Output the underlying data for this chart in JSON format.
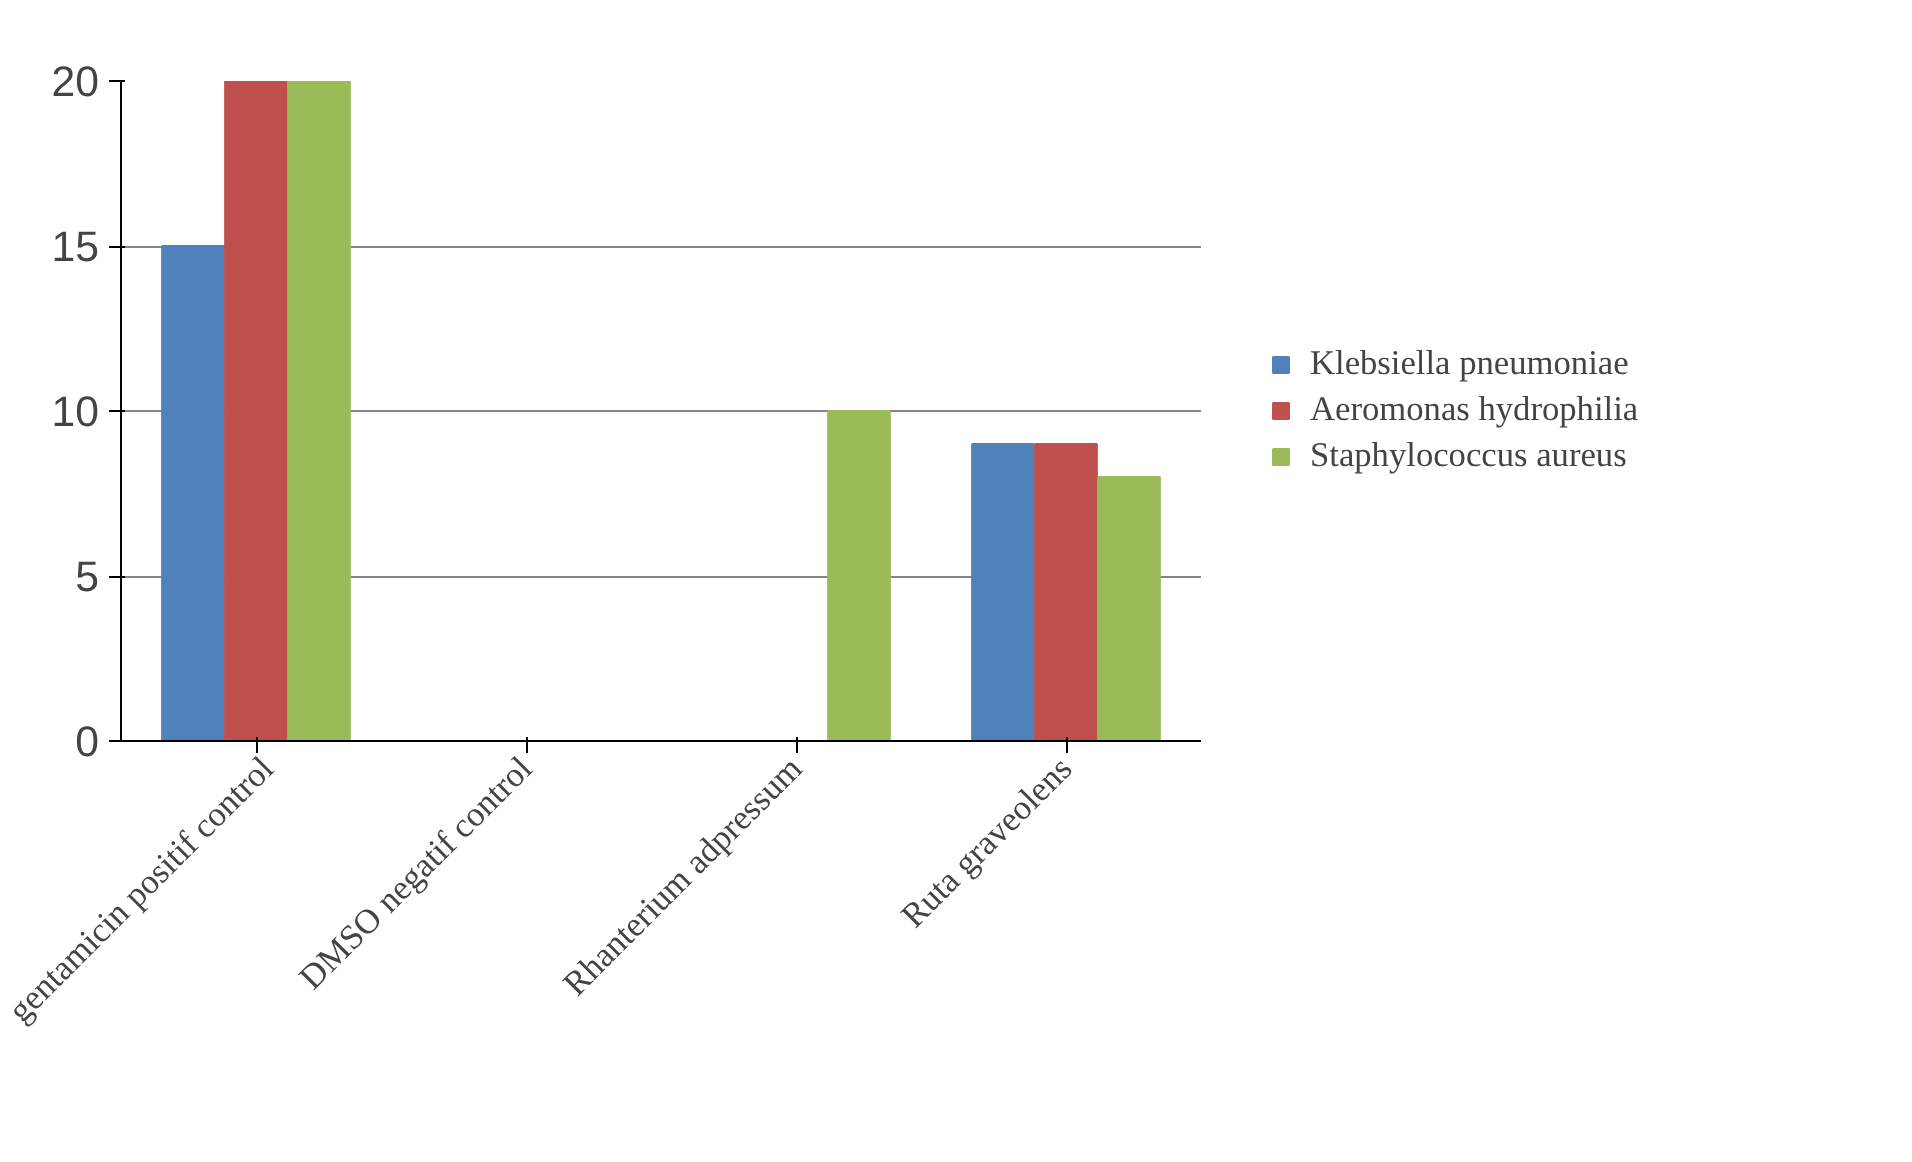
{
  "chart_data": {
    "type": "bar",
    "categories": [
      "gentamicin positif control",
      "DMSO negatif control",
      "Rhanterium adpressum",
      "Ruta graveolens"
    ],
    "series": [
      {
        "name": "Klebsiella pneumoniae",
        "color": "#4f81bd",
        "values": [
          15,
          0,
          0,
          9
        ]
      },
      {
        "name": "Aeromonas hydrophilia",
        "color": "#c0504d",
        "values": [
          20,
          0,
          0,
          9
        ]
      },
      {
        "name": "Staphylococcus aureus",
        "color": "#9bbb59",
        "values": [
          20,
          0,
          10,
          8
        ]
      }
    ],
    "ylim": [
      0,
      20
    ],
    "yticks": [
      0,
      5,
      10,
      15,
      20
    ],
    "grid": "y",
    "legend": "right"
  }
}
